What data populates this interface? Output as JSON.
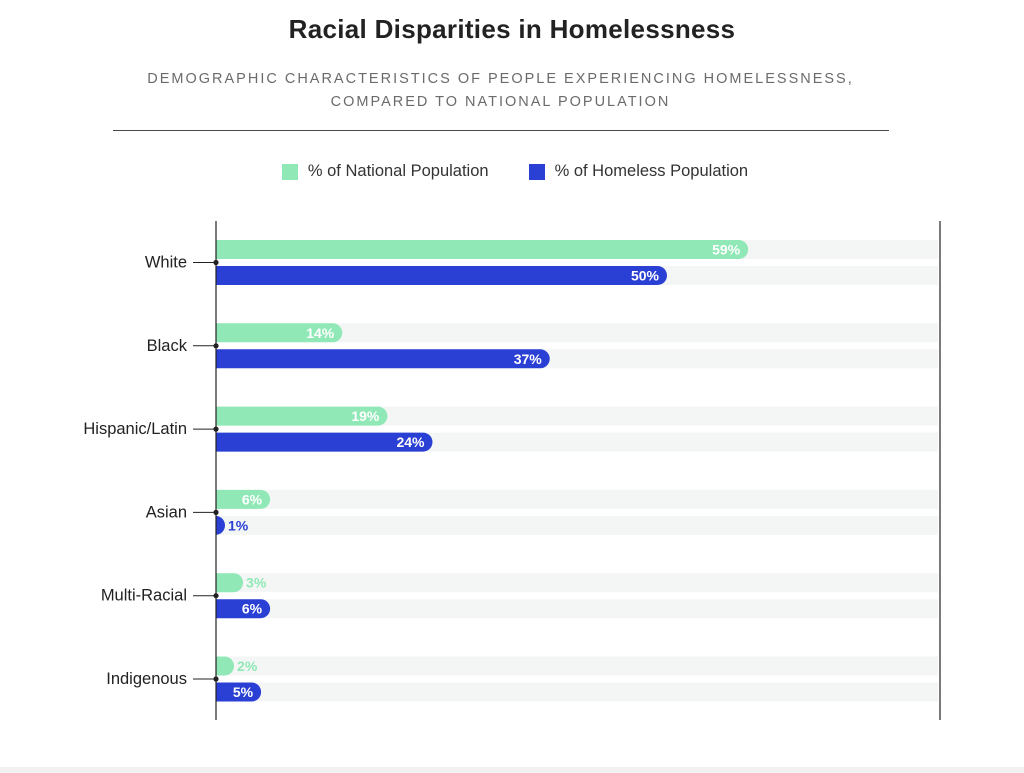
{
  "title": "Racial Disparities in Homelessness",
  "subtitle_line1": "DEMOGRAPHIC CHARACTERISTICS OF PEOPLE EXPERIENCING HOMELESSNESS,",
  "subtitle_line2": "COMPARED TO NATIONAL POPULATION",
  "legend": {
    "national": "% of National Population",
    "homeless": "% of Homeless Population"
  },
  "colors": {
    "national": "#8fe8b6",
    "homeless": "#2a3fd4",
    "track": "#f4f6f5",
    "axis": "#222222",
    "label": "#222222"
  },
  "chart_data": {
    "type": "bar",
    "orientation": "horizontal",
    "title": "Racial Disparities in Homelessness",
    "categories": [
      "White",
      "Black",
      "Hispanic/Latin",
      "Asian",
      "Multi-Racial",
      "Indigenous"
    ],
    "series": [
      {
        "name": "% of National Population",
        "key": "national",
        "values": [
          59,
          14,
          19,
          6,
          3,
          2
        ]
      },
      {
        "name": "% of Homeless Population",
        "key": "homeless",
        "values": [
          50,
          37,
          24,
          1,
          6,
          5
        ]
      }
    ],
    "value_labels": {
      "national": [
        "59%",
        "14%",
        "19%",
        "6%",
        "3%",
        "2%"
      ],
      "homeless": [
        "50%",
        "37%",
        "24%",
        "1%",
        "6%",
        "5%"
      ]
    },
    "xlim": [
      0,
      80
    ],
    "unit": "%"
  }
}
